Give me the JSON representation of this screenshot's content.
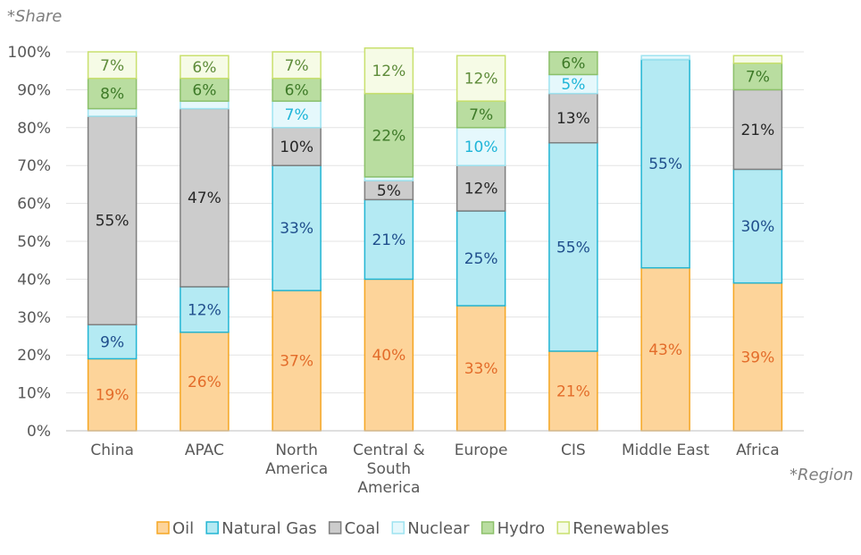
{
  "chart_data": {
    "type": "bar",
    "stacked": true,
    "ylabel": "*Share",
    "xlabel": "*Region",
    "ylim": [
      0,
      100
    ],
    "yticks": [
      "0%",
      "10%",
      "20%",
      "30%",
      "40%",
      "50%",
      "60%",
      "70%",
      "80%",
      "90%",
      "100%"
    ],
    "categories": [
      [
        "China"
      ],
      [
        "APAC"
      ],
      [
        "North",
        "America"
      ],
      [
        "Central &",
        "South",
        "America"
      ],
      [
        "Europe"
      ],
      [
        "CIS"
      ],
      [
        "Middle East"
      ],
      [
        "Africa"
      ]
    ],
    "grid": true,
    "legend_position": "bottom",
    "series": [
      {
        "name": "Oil",
        "values": [
          19,
          26,
          37,
          40,
          33,
          21,
          43,
          39
        ],
        "labels": [
          "19%",
          "26%",
          "37%",
          "40%",
          "33%",
          "21%",
          "43%",
          "39%"
        ],
        "fill": "#FDD49A",
        "stroke": "#F5A623",
        "label_color": "#E36C2A"
      },
      {
        "name": "Natural Gas",
        "values": [
          9,
          12,
          33,
          21,
          25,
          55,
          55,
          30
        ],
        "labels": [
          "9%",
          "12%",
          "33%",
          "21%",
          "25%",
          "55%",
          "55%",
          "30%"
        ],
        "fill": "#B4EAF3",
        "stroke": "#22B5D3",
        "label_color": "#1F4E8C"
      },
      {
        "name": "Coal",
        "values": [
          55,
          47,
          10,
          5,
          12,
          13,
          0,
          21
        ],
        "labels": [
          "55%",
          "47%",
          "10%",
          "5%",
          "12%",
          "13%",
          "",
          "21%"
        ],
        "fill": "#CCCCCC",
        "stroke": "#7F7F7F",
        "label_color": "#262626"
      },
      {
        "name": "Nuclear",
        "values": [
          2,
          2,
          7,
          1,
          10,
          5,
          1,
          0
        ],
        "labels": [
          "",
          "",
          "7%",
          "",
          "10%",
          "5%",
          "",
          ""
        ],
        "fill": "#E5F8FC",
        "stroke": "#9EE3F0",
        "label_color": "#1FB5D8"
      },
      {
        "name": "Hydro",
        "values": [
          8,
          6,
          6,
          22,
          7,
          6,
          0,
          7
        ],
        "labels": [
          "8%",
          "6%",
          "6%",
          "22%",
          "7%",
          "6%",
          "",
          "7%"
        ],
        "fill": "#B9DDA0",
        "stroke": "#8CC06A",
        "label_color": "#3E7A28"
      },
      {
        "name": "Renewables",
        "values": [
          7,
          6,
          7,
          12,
          12,
          0,
          0,
          2
        ],
        "labels": [
          "7%",
          "6%",
          "7%",
          "12%",
          "12%",
          "",
          "",
          ""
        ],
        "fill": "#F6FBE6",
        "stroke": "#C9E06E",
        "label_color": "#5E8C3A"
      }
    ]
  }
}
